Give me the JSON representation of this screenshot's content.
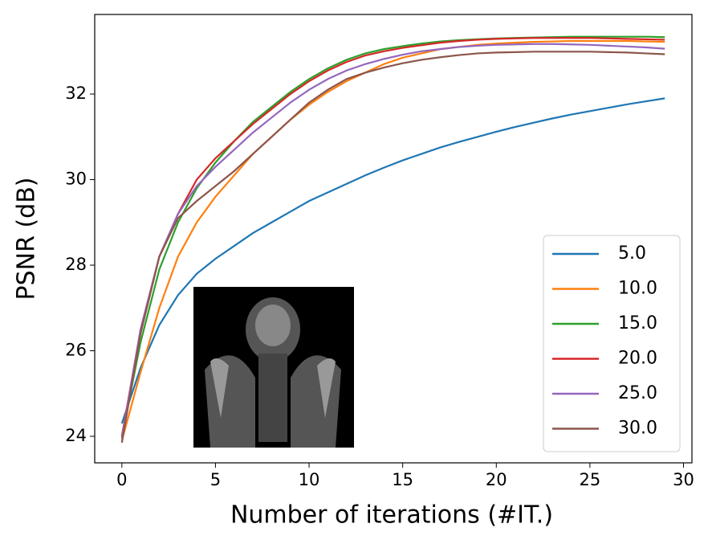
{
  "chart_data": {
    "type": "line",
    "xlabel": "Number of iterations (#IT.)",
    "ylabel": "PSNR (dB)",
    "x": [
      0,
      1,
      2,
      3,
      4,
      5,
      6,
      7,
      8,
      9,
      10,
      11,
      12,
      13,
      14,
      15,
      16,
      17,
      18,
      19,
      20,
      21,
      22,
      23,
      24,
      25,
      26,
      27,
      28,
      29
    ],
    "xlim": [
      -1.45,
      30.45
    ],
    "ylim": [
      23.38,
      33.86
    ],
    "xticks": [
      0,
      5,
      10,
      15,
      20,
      25,
      30
    ],
    "yticks": [
      24,
      26,
      28,
      30,
      32
    ],
    "legend": "lower right",
    "series": [
      {
        "name": "5.0",
        "color": "#1f77b4",
        "values": [
          24.3,
          25.6,
          26.6,
          27.3,
          27.8,
          28.15,
          28.45,
          28.75,
          29.0,
          29.25,
          29.5,
          29.7,
          29.9,
          30.1,
          30.28,
          30.45,
          30.6,
          30.75,
          30.88,
          31.0,
          31.12,
          31.23,
          31.33,
          31.43,
          31.52,
          31.6,
          31.68,
          31.76,
          31.83,
          31.9
        ]
      },
      {
        "name": "10.0",
        "color": "#ff7f0e",
        "values": [
          23.9,
          25.5,
          27.0,
          28.2,
          29.0,
          29.6,
          30.1,
          30.6,
          31.0,
          31.4,
          31.75,
          32.05,
          32.3,
          32.5,
          32.7,
          32.85,
          32.95,
          33.05,
          33.1,
          33.15,
          33.18,
          33.2,
          33.22,
          33.23,
          33.24,
          33.24,
          33.24,
          33.24,
          33.23,
          33.22
        ]
      },
      {
        "name": "15.0",
        "color": "#2ca02c",
        "values": [
          24.0,
          26.2,
          27.9,
          29.0,
          29.8,
          30.4,
          30.9,
          31.35,
          31.7,
          32.05,
          32.35,
          32.6,
          32.8,
          32.95,
          33.05,
          33.12,
          33.18,
          33.23,
          33.26,
          33.28,
          33.3,
          33.31,
          33.32,
          33.33,
          33.34,
          33.34,
          33.34,
          33.34,
          33.34,
          33.33
        ]
      },
      {
        "name": "20.0",
        "color": "#d62728",
        "values": [
          24.0,
          26.5,
          28.2,
          29.2,
          30.0,
          30.5,
          30.9,
          31.3,
          31.65,
          32.0,
          32.3,
          32.55,
          32.75,
          32.9,
          33.0,
          33.08,
          33.14,
          33.2,
          33.24,
          33.27,
          33.29,
          33.3,
          33.31,
          33.31,
          33.31,
          33.31,
          33.3,
          33.29,
          33.28,
          33.27
        ]
      },
      {
        "name": "25.0",
        "color": "#9467bd",
        "values": [
          23.95,
          26.5,
          28.2,
          29.2,
          29.85,
          30.3,
          30.7,
          31.1,
          31.45,
          31.8,
          32.1,
          32.35,
          32.55,
          32.7,
          32.82,
          32.92,
          33.0,
          33.05,
          33.1,
          33.13,
          33.15,
          33.16,
          33.17,
          33.17,
          33.16,
          33.15,
          33.13,
          33.11,
          33.09,
          33.06
        ]
      },
      {
        "name": "30.0",
        "color": "#8c564b",
        "values": [
          23.85,
          26.4,
          28.2,
          29.1,
          29.5,
          29.85,
          30.2,
          30.6,
          31.0,
          31.4,
          31.8,
          32.1,
          32.35,
          32.5,
          32.62,
          32.72,
          32.8,
          32.86,
          32.91,
          32.95,
          32.97,
          32.98,
          32.99,
          32.99,
          32.99,
          32.99,
          32.98,
          32.97,
          32.95,
          32.93
        ]
      }
    ]
  }
}
